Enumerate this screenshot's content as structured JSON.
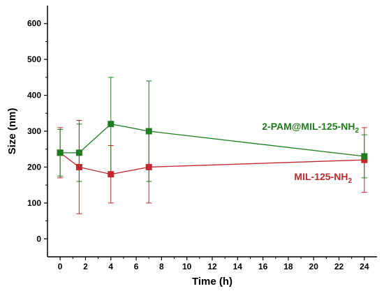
{
  "chart_data": {
    "type": "line",
    "xlabel": "Time (h)",
    "ylabel": "Size (nm)",
    "xlim": [
      -1,
      25
    ],
    "ylim": [
      -50,
      650
    ],
    "x_ticks": [
      0,
      2,
      4,
      6,
      8,
      10,
      12,
      14,
      16,
      18,
      20,
      22,
      24
    ],
    "y_ticks": [
      0,
      100,
      200,
      300,
      400,
      500,
      600
    ],
    "grid": false,
    "series": [
      {
        "name": "2-PAM@MIL-125-NH",
        "name_subscript": "2",
        "color": "#1e7d1e",
        "points": [
          {
            "x": 0,
            "y": 240,
            "err_low": 175,
            "err_high": 305
          },
          {
            "x": 1.5,
            "y": 240,
            "err_low": 160,
            "err_high": 320
          },
          {
            "x": 4,
            "y": 320,
            "err_low": 180,
            "err_high": 450
          },
          {
            "x": 7,
            "y": 300,
            "err_low": 160,
            "err_high": 440
          },
          {
            "x": 24,
            "y": 230,
            "err_low": 170,
            "err_high": 290
          }
        ]
      },
      {
        "name": "MIL-125-NH",
        "name_subscript": "2",
        "color": "#c0282d",
        "points": [
          {
            "x": 0,
            "y": 240,
            "err_low": 170,
            "err_high": 310
          },
          {
            "x": 1.5,
            "y": 200,
            "err_low": 70,
            "err_high": 330
          },
          {
            "x": 4,
            "y": 180,
            "err_low": 100,
            "err_high": 260
          },
          {
            "x": 7,
            "y": 200,
            "err_low": 100,
            "err_high": 300
          },
          {
            "x": 24,
            "y": 220,
            "err_low": 130,
            "err_high": 310
          }
        ]
      }
    ]
  }
}
